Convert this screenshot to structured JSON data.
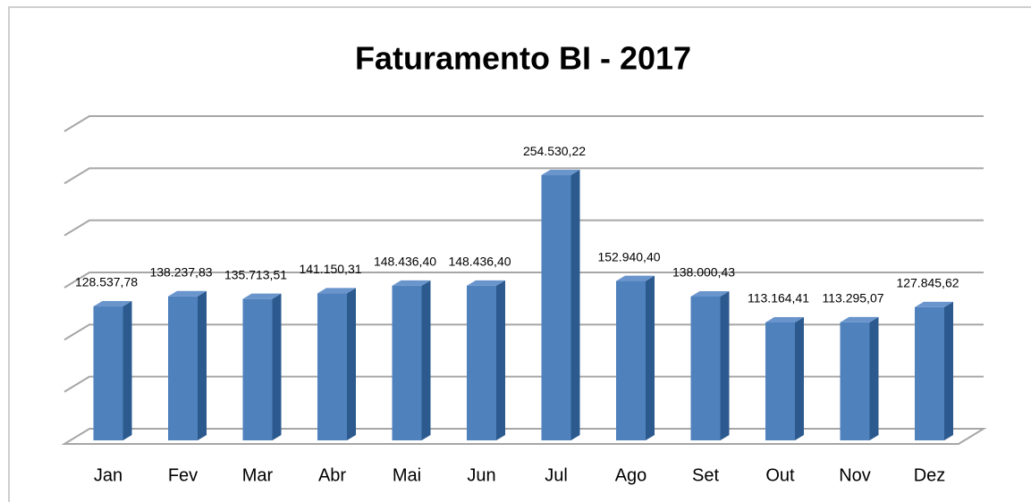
{
  "chart_data": {
    "type": "bar",
    "title": "Faturamento BI - 2017",
    "categories": [
      "Jan",
      "Fev",
      "Mar",
      "Abr",
      "Mai",
      "Jun",
      "Jul",
      "Ago",
      "Set",
      "Out",
      "Nov",
      "Dez"
    ],
    "values": [
      128537.78,
      138237.83,
      135713.51,
      141150.31,
      148436.4,
      148436.4,
      254530.22,
      152940.4,
      138000.43,
      113164.41,
      113295.07,
      127845.62
    ],
    "value_labels": [
      "128.537,78",
      "138.237,83",
      "135.713,51",
      "141.150,31",
      "148.436,40",
      "148.436,40",
      "254.530,22",
      "152.940,40",
      "138.000,43",
      "113.164,41",
      "113.295,07",
      "127.845,62"
    ],
    "color": "#4f81bd",
    "ylim": [
      0,
      300000
    ],
    "yticks": [
      0,
      50000,
      100000,
      150000,
      200000,
      250000,
      300000
    ],
    "grid": true
  }
}
